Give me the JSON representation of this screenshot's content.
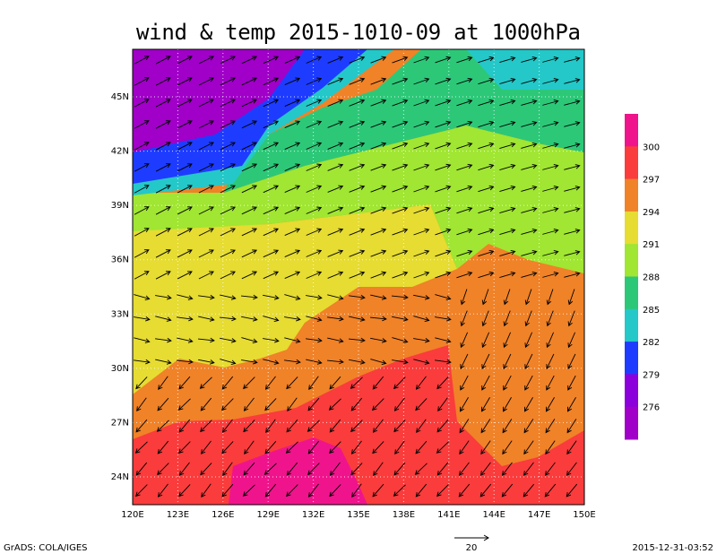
{
  "title": "wind & temp 2015-1010-09 at 1000hPa",
  "map": {
    "lon_labels": [
      "120E",
      "123E",
      "126E",
      "129E",
      "132E",
      "135E",
      "138E",
      "141E",
      "144E",
      "147E",
      "150E"
    ],
    "lat_labels": [
      "24N",
      "27N",
      "30N",
      "33N",
      "36N",
      "39N",
      "42N",
      "45N"
    ]
  },
  "colorbar": {
    "labels": [
      300,
      297,
      294,
      291,
      288,
      285,
      282,
      279,
      276
    ],
    "colors": [
      "#f0148c",
      "#fa3c3c",
      "#f08228",
      "#e6dc32",
      "#a0e632",
      "#2cc878",
      "#24c8c8",
      "#1e3cff",
      "#8c00dc",
      "#a000c8"
    ]
  },
  "vector_reference": "20",
  "footer": {
    "left": "GrADS: COLA/IGES",
    "right": "2015-12-31-03:52"
  }
}
